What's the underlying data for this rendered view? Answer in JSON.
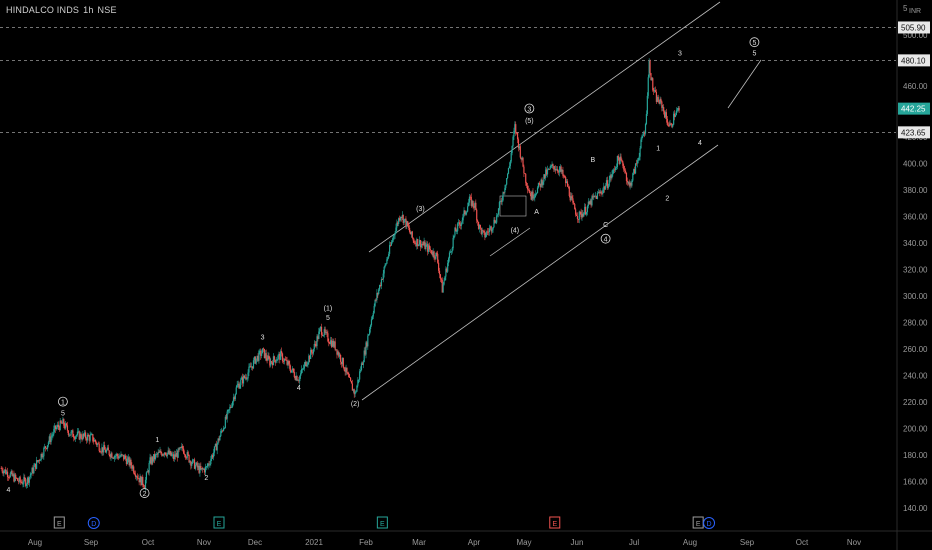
{
  "header": {
    "symbol": "HINDALCO INDS",
    "timeframe": "1h",
    "exchange": "NSE",
    "top_price": "5",
    "currency": "INR"
  },
  "chart_data": {
    "type": "candlestick",
    "ylim": [
      130,
      520
    ],
    "yticks": [
      140,
      160,
      180,
      200,
      220,
      240,
      260,
      280,
      300,
      320,
      340,
      360,
      380,
      400,
      420,
      460,
      500
    ],
    "x_labels": [
      "Aug",
      "Sep",
      "Oct",
      "Nov",
      "Dec",
      "2021",
      "Feb",
      "Mar",
      "Apr",
      "May",
      "Jun",
      "Jul",
      "Aug",
      "Sep",
      "Oct",
      "Nov"
    ],
    "price_lines": [
      {
        "value": 505.9,
        "label": "505.90",
        "style": "dashed"
      },
      {
        "value": 480.1,
        "label": "480.10",
        "style": "dashed"
      },
      {
        "value": 423.65,
        "label": "423.65",
        "style": "dashed"
      }
    ],
    "last_price": {
      "value": 442.25,
      "label": "442.25",
      "color": "#26a69a"
    },
    "colors": {
      "up": "#26a69a",
      "down": "#ef5350"
    },
    "price_path": [
      [
        0,
        170
      ],
      [
        5,
        165
      ],
      [
        10,
        160
      ],
      [
        14,
        160
      ],
      [
        18,
        170
      ],
      [
        24,
        185
      ],
      [
        30,
        200
      ],
      [
        34,
        204
      ],
      [
        38,
        196
      ],
      [
        45,
        194
      ],
      [
        50,
        193
      ],
      [
        55,
        185
      ],
      [
        62,
        180
      ],
      [
        68,
        178
      ],
      [
        72,
        172
      ],
      [
        76,
        162
      ],
      [
        79,
        158
      ],
      [
        82,
        175
      ],
      [
        86,
        180
      ],
      [
        90,
        183
      ],
      [
        95,
        178
      ],
      [
        100,
        185
      ],
      [
        104,
        176
      ],
      [
        110,
        168
      ],
      [
        113,
        170
      ],
      [
        118,
        185
      ],
      [
        122,
        200
      ],
      [
        126,
        215
      ],
      [
        130,
        232
      ],
      [
        135,
        240
      ],
      [
        140,
        252
      ],
      [
        144,
        258
      ],
      [
        148,
        250
      ],
      [
        154,
        255
      ],
      [
        158,
        248
      ],
      [
        162,
        240
      ],
      [
        164,
        238
      ],
      [
        168,
        250
      ],
      [
        172,
        260
      ],
      [
        176,
        275
      ],
      [
        180,
        268
      ],
      [
        184,
        262
      ],
      [
        188,
        250
      ],
      [
        192,
        235
      ],
      [
        195,
        226
      ],
      [
        198,
        245
      ],
      [
        201,
        262
      ],
      [
        205,
        290
      ],
      [
        209,
        310
      ],
      [
        213,
        330
      ],
      [
        217,
        350
      ],
      [
        220,
        362
      ],
      [
        223,
        355
      ],
      [
        227,
        342
      ],
      [
        231,
        340
      ],
      [
        236,
        335
      ],
      [
        240,
        330
      ],
      [
        243,
        305
      ],
      [
        246,
        325
      ],
      [
        250,
        348
      ],
      [
        254,
        358
      ],
      [
        258,
        372
      ],
      [
        261,
        368
      ],
      [
        263,
        353
      ],
      [
        266,
        345
      ],
      [
        270,
        352
      ],
      [
        273,
        360
      ],
      [
        276,
        375
      ],
      [
        280,
        398
      ],
      [
        283,
        428
      ],
      [
        286,
        408
      ],
      [
        289,
        388
      ],
      [
        292,
        375
      ],
      [
        296,
        382
      ],
      [
        300,
        392
      ],
      [
        304,
        398
      ],
      [
        308,
        395
      ],
      [
        312,
        383
      ],
      [
        315,
        368
      ],
      [
        318,
        360
      ],
      [
        322,
        365
      ],
      [
        326,
        373
      ],
      [
        330,
        378
      ],
      [
        334,
        385
      ],
      [
        337,
        393
      ],
      [
        340,
        404
      ],
      [
        343,
        398
      ],
      [
        346,
        382
      ],
      [
        349,
        395
      ],
      [
        351,
        405
      ],
      [
        353,
        418
      ],
      [
        355,
        428
      ],
      [
        356,
        455
      ],
      [
        357,
        478
      ],
      [
        359,
        458
      ],
      [
        361,
        450
      ],
      [
        364,
        445
      ],
      [
        367,
        432
      ],
      [
        369,
        428
      ],
      [
        371,
        438
      ],
      [
        374,
        442
      ]
    ],
    "wave_labels": [
      {
        "text": "4",
        "x": 4,
        "p": 152
      },
      {
        "text": "1",
        "x": 34,
        "p": 218,
        "circled": true
      },
      {
        "text": "5",
        "x": 34,
        "p": 210
      },
      {
        "text": "2",
        "x": 79,
        "p": 149,
        "circled": true
      },
      {
        "text": "1",
        "x": 86,
        "p": 190
      },
      {
        "text": "2",
        "x": 113,
        "p": 161
      },
      {
        "text": "3",
        "x": 144,
        "p": 267
      },
      {
        "text": "4",
        "x": 164,
        "p": 229
      },
      {
        "text": "(1)",
        "x": 180,
        "p": 289
      },
      {
        "text": "5",
        "x": 180,
        "p": 282
      },
      {
        "text": "(2)",
        "x": 195,
        "p": 217
      },
      {
        "text": "(3)",
        "x": 231,
        "p": 364
      },
      {
        "text": "(4)",
        "x": 283,
        "p": 348
      },
      {
        "text": "3",
        "x": 291,
        "p": 440,
        "circled": true
      },
      {
        "text": "(5)",
        "x": 291,
        "p": 431
      },
      {
        "text": "A",
        "x": 295,
        "p": 362
      },
      {
        "text": "B",
        "x": 326,
        "p": 401
      },
      {
        "text": "C",
        "x": 333,
        "p": 352
      },
      {
        "text": "4",
        "x": 333,
        "p": 341,
        "circled": true
      },
      {
        "text": "1",
        "x": 362,
        "p": 410
      },
      {
        "text": "2",
        "x": 367,
        "p": 372
      },
      {
        "text": "3",
        "x": 374,
        "p": 484
      },
      {
        "text": "4",
        "x": 385,
        "p": 414
      },
      {
        "text": "5",
        "x": 415,
        "p": 492,
        "circled": true
      },
      {
        "text": "5",
        "x": 415,
        "p": 484
      }
    ],
    "event_markers": [
      {
        "type": "E",
        "x": 32,
        "color": "#9e9e9e"
      },
      {
        "type": "D",
        "x": 51,
        "color": "#2962ff"
      },
      {
        "type": "E",
        "x": 120,
        "color": "#26a69a"
      },
      {
        "type": "E",
        "x": 210,
        "color": "#26a69a"
      },
      {
        "type": "E",
        "x": 305,
        "color": "#ef5350"
      },
      {
        "type": "E",
        "x": 384,
        "color": "#9e9e9e"
      },
      {
        "type": "D",
        "x": 390,
        "color": "#2962ff"
      }
    ]
  }
}
